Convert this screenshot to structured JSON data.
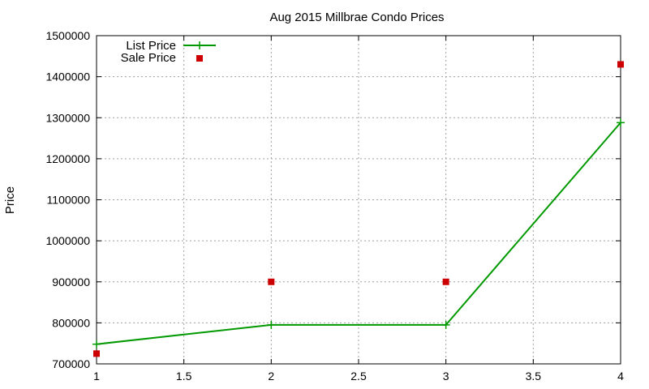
{
  "chart_data": {
    "type": "line",
    "title": "Aug 2015 Millbrae Condo Prices",
    "xlabel": "",
    "ylabel": "Price",
    "xlim": [
      1,
      4
    ],
    "ylim": [
      700000,
      1500000
    ],
    "x_ticks": [
      "1",
      "1.5",
      "2",
      "2.5",
      "3",
      "3.5",
      "4"
    ],
    "y_ticks": [
      "700000",
      "800000",
      "900000",
      "1000000",
      "1100000",
      "1200000",
      "1300000",
      "1400000",
      "1500000"
    ],
    "grid": true,
    "legend_position": "top-left",
    "series": [
      {
        "name": "List Price",
        "style": "line-with-plus-markers",
        "color": "#009900",
        "x": [
          1,
          2,
          3,
          4
        ],
        "values": [
          748000,
          795000,
          795000,
          1288000
        ]
      },
      {
        "name": "Sale Price",
        "style": "square-markers",
        "color": "#cc0000",
        "x": [
          1,
          2,
          3,
          4
        ],
        "values": [
          725000,
          900000,
          900000,
          1430000
        ]
      }
    ]
  }
}
